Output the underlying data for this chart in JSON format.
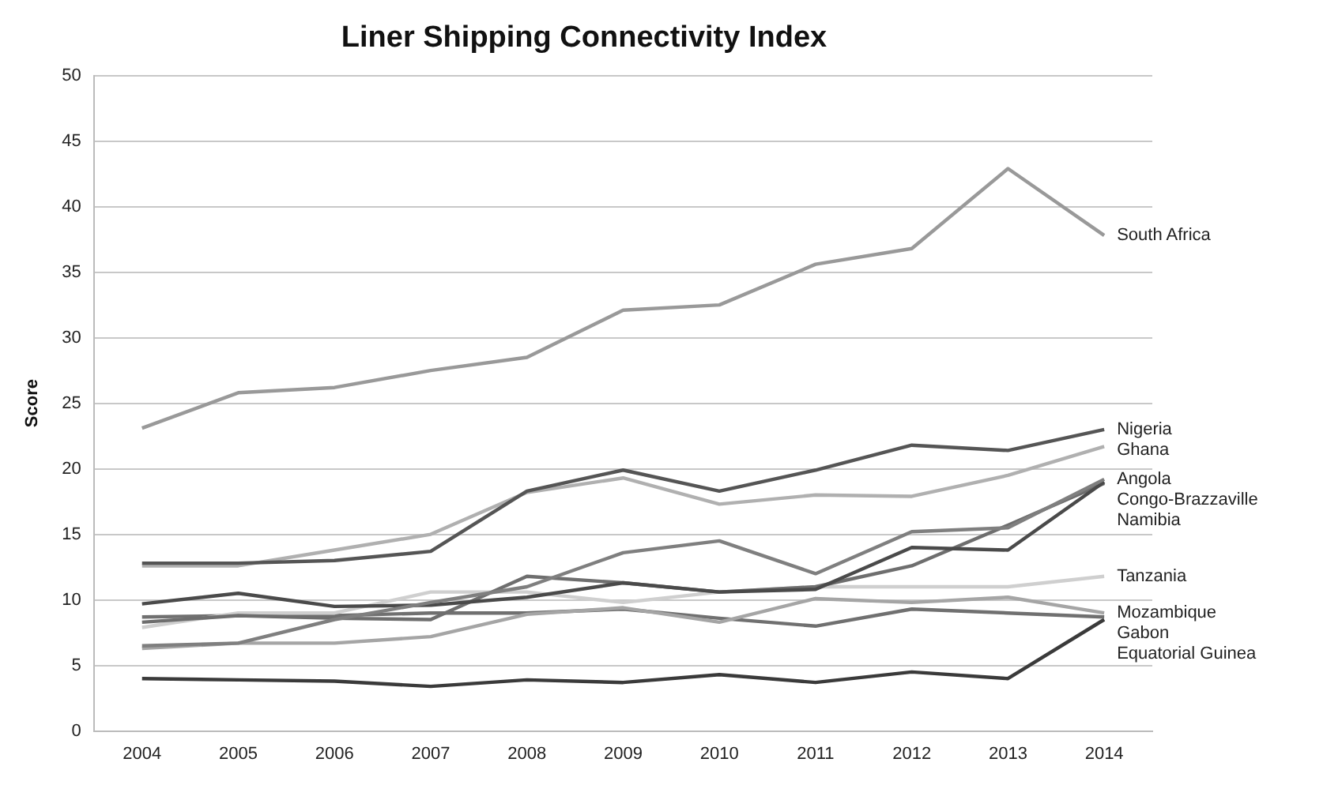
{
  "chart_data": {
    "type": "line",
    "title": "Liner Shipping Connectivity Index",
    "ylabel": "Score",
    "categories": [
      "2004",
      "2005",
      "2006",
      "2007",
      "2008",
      "2009",
      "2010",
      "2011",
      "2012",
      "2013",
      "2014"
    ],
    "ylim": [
      0,
      50
    ],
    "yticks": [
      0,
      5,
      10,
      15,
      20,
      25,
      30,
      35,
      40,
      45,
      50
    ],
    "grid": "y",
    "legend": false,
    "marker": "none",
    "line_style": "solid",
    "series": [
      {
        "name": "South Africa",
        "color": "#999999",
        "values": [
          23.1,
          25.8,
          26.2,
          27.5,
          28.5,
          32.1,
          32.5,
          35.6,
          36.8,
          42.9,
          37.8
        ]
      },
      {
        "name": "Nigeria",
        "color": "#555555",
        "values": [
          12.8,
          12.8,
          13.0,
          13.7,
          18.3,
          19.9,
          18.3,
          19.9,
          21.8,
          21.4,
          23.0
        ]
      },
      {
        "name": "Ghana",
        "color": "#b0b0b0",
        "values": [
          12.6,
          12.6,
          13.8,
          15.0,
          18.2,
          19.3,
          17.3,
          18.0,
          17.9,
          19.5,
          21.7
        ]
      },
      {
        "name": "Angola",
        "color": "#7f7f7f",
        "values": [
          6.5,
          6.7,
          8.5,
          9.8,
          11.0,
          13.6,
          14.5,
          12.0,
          15.2,
          15.5,
          19.2
        ]
      },
      {
        "name": "Congo-Brazzaville",
        "color": "#4a4a4a",
        "values": [
          9.7,
          10.5,
          9.5,
          9.6,
          10.2,
          11.3,
          10.6,
          10.8,
          14.0,
          13.8,
          19.0
        ]
      },
      {
        "name": "Namibia",
        "color": "#6e6e6e",
        "values": [
          8.3,
          8.8,
          8.6,
          8.5,
          11.8,
          11.3,
          10.6,
          11.0,
          12.6,
          15.7,
          18.9
        ]
      },
      {
        "name": "Tanzania",
        "color": "#cfcfcf",
        "values": [
          7.9,
          9.0,
          9.0,
          10.6,
          10.6,
          9.8,
          10.6,
          11.0,
          11.0,
          11.0,
          11.8
        ]
      },
      {
        "name": "Mozambique",
        "color": "#a5a5a5",
        "values": [
          6.3,
          6.7,
          6.7,
          7.2,
          8.9,
          9.4,
          8.3,
          10.1,
          9.8,
          10.2,
          9.0
        ]
      },
      {
        "name": "Gabon",
        "color": "#707070",
        "values": [
          8.7,
          8.8,
          8.8,
          9.0,
          9.0,
          9.3,
          8.6,
          8.0,
          9.3,
          9.0,
          8.7
        ]
      },
      {
        "name": "Equatorial Guinea",
        "color": "#3a3a3a",
        "values": [
          4.0,
          3.9,
          3.8,
          3.4,
          3.9,
          3.7,
          4.3,
          3.7,
          4.5,
          4.0,
          8.5
        ]
      }
    ]
  }
}
